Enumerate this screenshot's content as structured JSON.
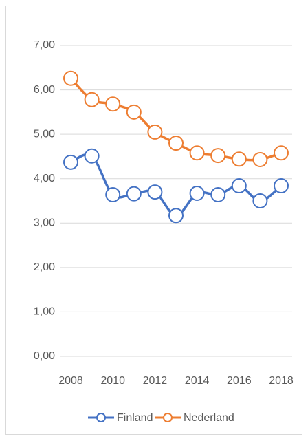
{
  "chart_data": {
    "type": "line",
    "x": [
      2008,
      2009,
      2010,
      2011,
      2012,
      2013,
      2014,
      2015,
      2016,
      2017,
      2018
    ],
    "series": [
      {
        "name": "Finland",
        "color": "#4472c4",
        "values": [
          4.37,
          4.51,
          3.64,
          3.66,
          3.7,
          3.17,
          3.67,
          3.64,
          3.84,
          3.5,
          3.84
        ]
      },
      {
        "name": "Nederland",
        "color": "#ed7d31",
        "values": [
          6.26,
          5.78,
          5.68,
          5.5,
          5.05,
          4.8,
          4.58,
          4.52,
          4.44,
          4.43,
          4.58
        ]
      }
    ],
    "xlim": [
      2008,
      2018
    ],
    "xticks": [
      2008,
      2010,
      2012,
      2014,
      2016,
      2018
    ],
    "ylim": [
      0,
      7
    ],
    "yticks": [
      {
        "value": 0,
        "label": "0,00"
      },
      {
        "value": 1,
        "label": "1,00"
      },
      {
        "value": 2,
        "label": "2,00"
      },
      {
        "value": 3,
        "label": "3,00"
      },
      {
        "value": 4,
        "label": "4,00"
      },
      {
        "value": 5,
        "label": "5,00"
      },
      {
        "value": 6,
        "label": "6,00"
      },
      {
        "value": 7,
        "label": "7,00"
      }
    ],
    "grid": true,
    "smooth": true,
    "markers": true,
    "legend": "bottom"
  }
}
